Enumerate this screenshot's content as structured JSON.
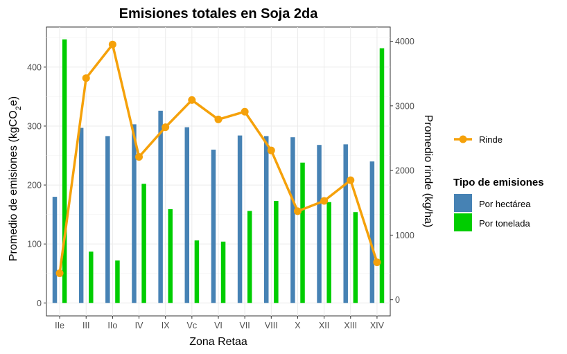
{
  "chart_data": {
    "type": "bar+line",
    "title": "Emisiones totales en Soja 2da",
    "xlabel": "Zona Retaa",
    "ylabel_left_prefix": "Promedio de emisiones (kgCO",
    "ylabel_left_sub": "2",
    "ylabel_left_suffix": "e)",
    "ylabel_right": "Promedio rinde (kg/ha)",
    "categories": [
      "IIe",
      "III",
      "IIo",
      "IV",
      "IX",
      "Vc",
      "VI",
      "VII",
      "VIII",
      "X",
      "XII",
      "XIII",
      "XIV"
    ],
    "ylim_left": [
      -22,
      468
    ],
    "ylim_right": [
      -250,
      4220
    ],
    "yticks_left": [
      "0",
      "100",
      "200",
      "300",
      "400"
    ],
    "yticks_right": [
      "0",
      "1000",
      "2000",
      "3000",
      "4000"
    ],
    "legend_line_title": "",
    "legend_bars_title": "Tipo de emisiones",
    "series": [
      {
        "name": "Por hectárea",
        "kind": "bar",
        "axis": "left",
        "color": "#4682b4",
        "values": [
          180,
          297,
          283,
          303,
          326,
          298,
          260,
          284,
          283,
          281,
          268,
          269,
          240
        ]
      },
      {
        "name": "Por tonelada",
        "kind": "bar",
        "axis": "left",
        "color": "#00cd00",
        "values": [
          447,
          87,
          72,
          202,
          159,
          106,
          104,
          156,
          173,
          238,
          171,
          154,
          432
        ]
      },
      {
        "name": "Rinde",
        "kind": "line",
        "axis": "right",
        "color": "#f5a10a",
        "values": [
          410,
          3430,
          3950,
          2210,
          2670,
          3090,
          2790,
          2910,
          2310,
          1370,
          1530,
          1850,
          580
        ]
      }
    ]
  }
}
